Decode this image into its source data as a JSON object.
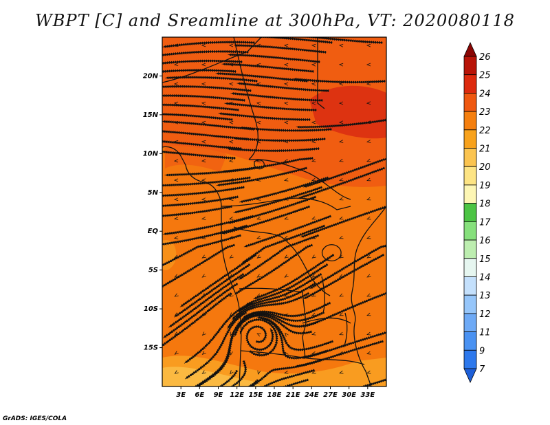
{
  "title": "WBPT [C] and Sreamline at 300hPa, VT: 2020080118",
  "footer": "GrADS: IGES/COLA",
  "map": {
    "lon_range": [
      0,
      36
    ],
    "lat_range": [
      -20,
      25
    ],
    "lat_labels": [
      "20N",
      "15N",
      "10N",
      "5N",
      "EQ",
      "5S",
      "10S",
      "15S"
    ],
    "lat_values": [
      20,
      15,
      10,
      5,
      0,
      -5,
      -10,
      -15
    ],
    "lon_labels": [
      "3E",
      "6E",
      "9E",
      "12E",
      "15E",
      "18E",
      "21E",
      "24E",
      "27E",
      "30E",
      "33E"
    ],
    "lon_values": [
      3,
      6,
      9,
      12,
      15,
      18,
      21,
      24,
      27,
      30,
      33
    ]
  },
  "colorbar": {
    "labels": [
      "7",
      "9",
      "11",
      "12",
      "13",
      "14",
      "15",
      "16",
      "17",
      "18",
      "19",
      "20",
      "21",
      "22",
      "23",
      "24",
      "25",
      "26"
    ],
    "colors": [
      "#1e5fd8",
      "#2d78ec",
      "#4a92f2",
      "#6eaaf6",
      "#96c6fa",
      "#c4e0fc",
      "#e6f6f0",
      "#bdeeb0",
      "#86e07c",
      "#4cc444",
      "#fdf6b4",
      "#fde484",
      "#fbc450",
      "#f8a21c",
      "#f57f0e",
      "#ef5810",
      "#dd2a0e",
      "#b81408",
      "#8a0604"
    ]
  },
  "colors": {
    "field_hot": "#d92c12",
    "field_warm": "#ef5a12",
    "field_mid": "#f5780e",
    "field_cool": "#f9a022",
    "field_low": "#fbc04a",
    "coast": "#111111"
  }
}
